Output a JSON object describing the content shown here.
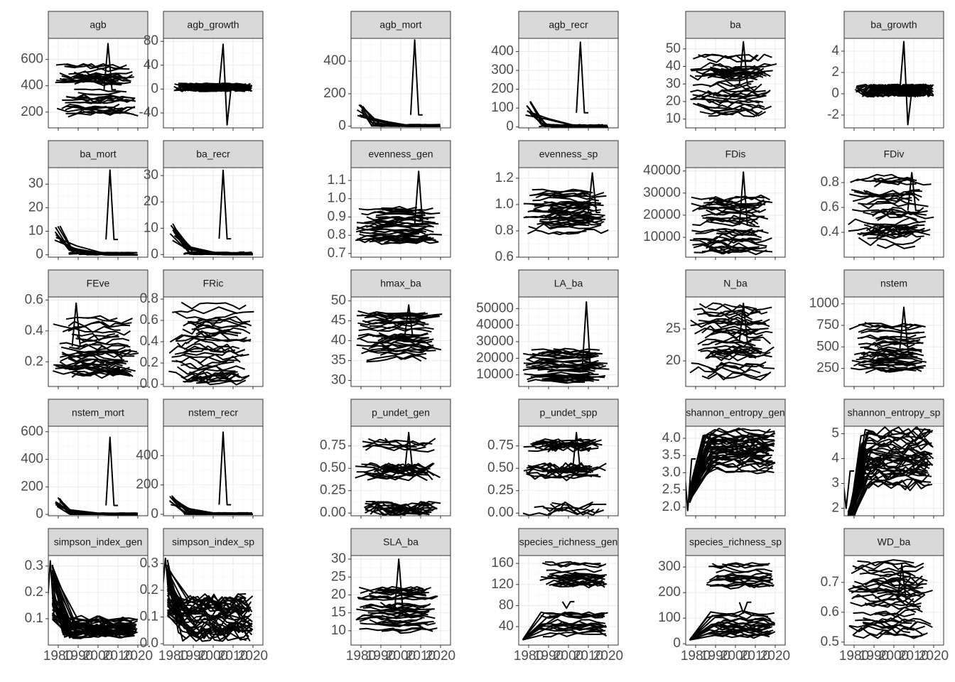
{
  "chart_data": {
    "type": "line",
    "layout": "facet_wrap",
    "ncol": 6,
    "xlim": [
      1975,
      2025
    ],
    "x_ticks": [
      1980,
      1990,
      2000,
      2010,
      2020
    ],
    "x_tick_labels": [
      "1980",
      "1990",
      "2000",
      "2010",
      "2020"
    ],
    "grid": true,
    "line_color": "#000000",
    "strip_fill": "#d9d9d9",
    "panels": [
      {
        "name": "agb",
        "ylim": [
          80,
          760
        ],
        "yticks": [
          200,
          400,
          600
        ],
        "pattern": "dense",
        "base": [
          180,
          560
        ],
        "spike": [
          2006,
          720
        ]
      },
      {
        "name": "agb_growth",
        "ylim": [
          -65,
          85
        ],
        "yticks": [
          -40,
          0,
          40,
          80
        ],
        "pattern": "flat",
        "base": [
          -4,
          10
        ],
        "spike": [
          2006,
          75,
          -60
        ]
      },
      {
        "name": "agb_mort",
        "ylim": [
          -10,
          540
        ],
        "yticks": [
          0,
          200,
          400
        ],
        "pattern": "mort",
        "base": [
          0,
          140
        ],
        "spike": [
          2008,
          530
        ]
      },
      {
        "name": "agb_recr",
        "ylim": [
          -5,
          470
        ],
        "yticks": [
          0,
          100,
          200,
          300,
          400
        ],
        "pattern": "mort",
        "base": [
          0,
          150
        ],
        "spike": [
          2007,
          450
        ]
      },
      {
        "name": "ba",
        "ylim": [
          5,
          56
        ],
        "yticks": [
          10,
          20,
          30,
          40,
          50
        ],
        "pattern": "dense",
        "base": [
          12,
          48
        ],
        "spike": [
          2005,
          54
        ]
      },
      {
        "name": "ba_growth",
        "ylim": [
          -3.2,
          5.2
        ],
        "yticks": [
          -2,
          0,
          2,
          4
        ],
        "pattern": "flat",
        "base": [
          -0.3,
          0.9
        ],
        "spike": [
          2006,
          4.9,
          -2.9
        ]
      },
      {
        "name": "ba_mort",
        "ylim": [
          -1,
          37
        ],
        "yticks": [
          0,
          10,
          20,
          30
        ],
        "pattern": "mort",
        "base": [
          0,
          13
        ],
        "spike": [
          2007,
          36
        ]
      },
      {
        "name": "ba_recr",
        "ylim": [
          -1,
          33
        ],
        "yticks": [
          0,
          10,
          20,
          30
        ],
        "pattern": "mort",
        "base": [
          0,
          12
        ],
        "spike": [
          2006,
          32
        ]
      },
      {
        "name": "evenness_gen",
        "ylim": [
          0.68,
          1.17
        ],
        "yticks": [
          0.7,
          0.8,
          0.9,
          1.0,
          1.1
        ],
        "yticklabels": [
          "0.7",
          "0.8",
          "0.9",
          "1.0",
          "1.1"
        ],
        "pattern": "dense",
        "base": [
          0.76,
          0.96
        ],
        "spike": [
          2010,
          1.15
        ]
      },
      {
        "name": "evenness_sp",
        "ylim": [
          0.6,
          1.28
        ],
        "yticks": [
          0.6,
          0.8,
          1.0,
          1.2
        ],
        "yticklabels": [
          "0.6",
          "0.8",
          "1.0",
          "1.2"
        ],
        "pattern": "dense",
        "base": [
          0.78,
          1.1
        ],
        "spike": [
          2013,
          1.24
        ]
      },
      {
        "name": "FDis",
        "ylim": [
          1000,
          41500
        ],
        "yticks": [
          10000,
          20000,
          30000,
          40000
        ],
        "pattern": "dense",
        "base": [
          3000,
          28000
        ],
        "spike": [
          2005,
          39500
        ]
      },
      {
        "name": "FDiv",
        "ylim": [
          0.2,
          0.92
        ],
        "yticks": [
          0.4,
          0.6,
          0.8
        ],
        "yticklabels": [
          "0.4",
          "0.6",
          "0.8"
        ],
        "pattern": "dense",
        "base": [
          0.3,
          0.85
        ],
        "spike": [
          2010,
          0.88
        ]
      },
      {
        "name": "FEve",
        "ylim": [
          0.04,
          0.62
        ],
        "yticks": [
          0.2,
          0.4,
          0.6
        ],
        "yticklabels": [
          "0.2",
          "0.4",
          "0.6"
        ],
        "pattern": "dense",
        "base": [
          0.1,
          0.5
        ],
        "spike": [
          1990,
          0.58
        ]
      },
      {
        "name": "FRic",
        "ylim": [
          -0.02,
          0.82
        ],
        "yticks": [
          0.0,
          0.2,
          0.4,
          0.6,
          0.8
        ],
        "yticklabels": [
          "0.0",
          "0.2",
          "0.4",
          "0.6",
          "0.8"
        ],
        "pattern": "dense",
        "base": [
          0.02,
          0.76
        ],
        "spike": [
          1985,
          0.35
        ]
      },
      {
        "name": "hmax_ba",
        "ylim": [
          28.5,
          51
        ],
        "yticks": [
          30,
          35,
          40,
          45,
          50
        ],
        "pattern": "dense",
        "base": [
          35,
          47
        ],
        "spike": [
          2005,
          49
        ]
      },
      {
        "name": "LA_ba",
        "ylim": [
          3000,
          57000
        ],
        "yticks": [
          10000,
          20000,
          30000,
          40000,
          50000
        ],
        "pattern": "dense",
        "base": [
          5000,
          25000
        ],
        "spike": [
          2010,
          54000
        ]
      },
      {
        "name": "N_ba",
        "ylim": [
          16,
          30
        ],
        "yticks": [
          20,
          25
        ],
        "pattern": "dense",
        "base": [
          17.5,
          28.5
        ],
        "spike": [
          2005,
          29
        ]
      },
      {
        "name": "nstem",
        "ylim": [
          40,
          1080
        ],
        "yticks": [
          250,
          500,
          750,
          1000
        ],
        "pattern": "dense",
        "base": [
          200,
          760
        ],
        "spike": [
          2006,
          960
        ]
      },
      {
        "name": "nstem_mort",
        "ylim": [
          -10,
          640
        ],
        "yticks": [
          0,
          200,
          400,
          600
        ],
        "pattern": "mort",
        "base": [
          0,
          130
        ],
        "spike": [
          2007,
          560
        ]
      },
      {
        "name": "nstem_recr",
        "ylim": [
          -10,
          600
        ],
        "yticks": [
          0,
          200,
          400
        ],
        "pattern": "mort",
        "base": [
          0,
          130
        ],
        "spike": [
          2006,
          560
        ]
      },
      {
        "name": "p_undet_gen",
        "ylim": [
          -0.03,
          0.97
        ],
        "yticks": [
          0.0,
          0.25,
          0.5,
          0.75
        ],
        "yticklabels": [
          "0.00",
          "0.25",
          "0.50",
          "0.75"
        ],
        "pattern": "bands",
        "base": [
          0.0,
          0.92
        ],
        "spike": [
          2005,
          0.9
        ]
      },
      {
        "name": "p_undet_spp",
        "ylim": [
          -0.03,
          0.97
        ],
        "yticks": [
          0.0,
          0.25,
          0.5,
          0.75
        ],
        "yticklabels": [
          "0.00",
          "0.25",
          "0.50",
          "0.75"
        ],
        "pattern": "bands",
        "base": [
          0.0,
          0.92
        ],
        "spike": [
          2005,
          0.9
        ]
      },
      {
        "name": "shannon_entropy_gen",
        "ylim": [
          1.75,
          4.35
        ],
        "yticks": [
          2.0,
          2.5,
          3.0,
          3.5,
          4.0
        ],
        "yticklabels": [
          "2.0",
          "2.5",
          "3.0",
          "3.5",
          "4.0"
        ],
        "pattern": "rise",
        "base": [
          2.6,
          4.2
        ],
        "spike": [
          1977,
          1.9
        ]
      },
      {
        "name": "shannon_entropy_sp",
        "ylim": [
          1.7,
          5.3
        ],
        "yticks": [
          2,
          3,
          4,
          5
        ],
        "pattern": "rise",
        "base": [
          1.9,
          5.1
        ],
        "spike": [
          1977,
          2.0
        ]
      },
      {
        "name": "simpson_index_gen",
        "ylim": [
          0.0,
          0.34
        ],
        "yticks": [
          0.1,
          0.2,
          0.3
        ],
        "yticklabels": [
          "0.1",
          "0.2",
          "0.3"
        ],
        "pattern": "decay",
        "base": [
          0.03,
          0.16
        ],
        "spike": [
          1977,
          0.32
        ]
      },
      {
        "name": "simpson_index_sp",
        "ylim": [
          -0.005,
          0.33
        ],
        "yticks": [
          0.0,
          0.1,
          0.2,
          0.3
        ],
        "yticklabels": [
          "0.0",
          "0.1",
          "0.2",
          "0.3"
        ],
        "pattern": "decay",
        "base": [
          0.01,
          0.3
        ],
        "spike": [
          1977,
          0.32
        ]
      },
      {
        "name": "SLA_ba",
        "ylim": [
          6,
          31
        ],
        "yticks": [
          10,
          15,
          20,
          25,
          30
        ],
        "pattern": "dense",
        "base": [
          10,
          22
        ],
        "spike": [
          2000,
          30
        ]
      },
      {
        "name": "species_richness_gen",
        "ylim": [
          5,
          175
        ],
        "yticks": [
          40,
          80,
          120,
          160
        ],
        "pattern": "twogroups",
        "base": [
          15,
          160
        ],
        "spike": [
          2000,
          75
        ]
      },
      {
        "name": "species_richness_sp",
        "ylim": [
          -5,
          345
        ],
        "yticks": [
          0,
          100,
          200,
          300
        ],
        "pattern": "twogroups",
        "base": [
          15,
          310
        ],
        "spike": [
          2005,
          120
        ]
      },
      {
        "name": "WD_ba",
        "ylim": [
          0.49,
          0.79
        ],
        "yticks": [
          0.5,
          0.6,
          0.7
        ],
        "yticklabels": [
          "0.5",
          "0.6",
          "0.7"
        ],
        "pattern": "dense",
        "base": [
          0.52,
          0.77
        ],
        "spike": [
          2005,
          0.76
        ]
      }
    ]
  }
}
